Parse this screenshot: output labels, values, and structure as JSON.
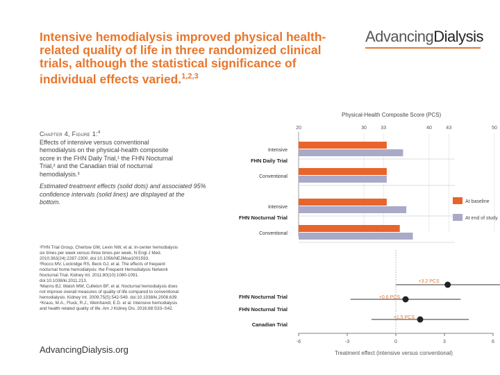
{
  "slide": {
    "title_main": "Intensive hemodialysis improved physical health-related quality of life in three randomized clinical trials, although the statistical significance of individual effects varied.",
    "title_sup": "1,2,3",
    "logo": {
      "part1": "Advancing",
      "part2": "Dialysis"
    },
    "caption_head": "Chapter 4, Figure 1:",
    "caption_head_sup": "4",
    "caption_lines": [
      "Effects of intensive versus conventional",
      "hemodialysis on the physical-health composite",
      "score in the FHN Daily Trial,¹ the FHN Nocturnal",
      "Trial,² and the Canadian trial of nocturnal",
      "hemodialysis.³"
    ],
    "caption_italic": "Estimated treatment effects (solid dots) and associated 95% confidence intervals (solid lines) are displayed at the bottom.",
    "references": [
      "¹FHN Trial Group, Chertow GM, Levin NW, et al. In-center hemodialysis",
      "six times per week versus three times per week. N Engl J Med.",
      "2010;363(24):2287-2300. doi:10.1056/NEJMoa1001593.",
      "²Rocco MV, Lockridge RS, Beck GJ, et al. The effects of frequent",
      "nocturnal home hemodialysis: the Frequent Hemodialysis Network",
      "Nocturnal Trial. Kidney Int. 2011;80(10):1080-1091.",
      "doi:10.1038/ki.2011.213.",
      "³Manns BJ, Walsh MW, Culleton BF, et al. Nocturnal hemodialysis does",
      "not improve overall measures of quality of life compared to conventional",
      "hemodialysis. Kidney Int. 2009;75(5):542-549. doi:10.1038/ki.2008.639.",
      "⁴Kraus, M.A., Fluck, R.J., Weinhandl, E.D. et al. Intensive hemodialysis",
      "and health-related quality of life. Am J Kidney Dis. 2016;68:S33–S42."
    ],
    "website": "AdvancingDialysis.org"
  },
  "chart_data": [
    {
      "type": "bar",
      "orientation": "horizontal",
      "title": "Physical-Health Composite Score (PCS)",
      "xlim": [
        20,
        50
      ],
      "xticks": [
        "20",
        "30",
        "33",
        "40",
        "43",
        "50"
      ],
      "groups": [
        {
          "label": "FHN Daily Trial",
          "rows": [
            {
              "label": "Intensive",
              "baseline": 33.5,
              "end": 36.0
            },
            {
              "label": "Conventional",
              "baseline": 33.5,
              "end": 33.5
            }
          ]
        },
        {
          "label": "FHN Nocturnal Trial",
          "rows": [
            {
              "label": "Intensive",
              "baseline": 33.5,
              "end": 36.5
            },
            {
              "label": "Conventional",
              "baseline": 35.5,
              "end": 37.5
            }
          ]
        }
      ],
      "series": [
        {
          "name": "At baseline",
          "color": "#e8642b"
        },
        {
          "name": "At end of study",
          "color": "#a9a9c8"
        }
      ]
    },
    {
      "type": "scatter",
      "subtype": "forest",
      "xlabel": "Treatment effect (intensive versus conventional)",
      "xlim": [
        -6,
        6
      ],
      "xticks": [
        "-6",
        "-3",
        "0",
        "3",
        "6"
      ],
      "points": [
        {
          "trial": "FHN Nocturnal Trial",
          "estimate": 3.2,
          "ci": [
            0.0,
            6.5
          ],
          "label": "+3.2 PCS"
        },
        {
          "trial": "FHN Nocturnal Trial",
          "estimate": 0.6,
          "ci": [
            -2.8,
            4.0
          ],
          "label": "+0.6 PCS"
        },
        {
          "trial": "Canadian Trial",
          "estimate": 1.5,
          "ci": [
            -1.5,
            4.5
          ],
          "label": "+1.5 PCS"
        }
      ],
      "point_color": "#222222",
      "line_color": "#333333"
    }
  ]
}
